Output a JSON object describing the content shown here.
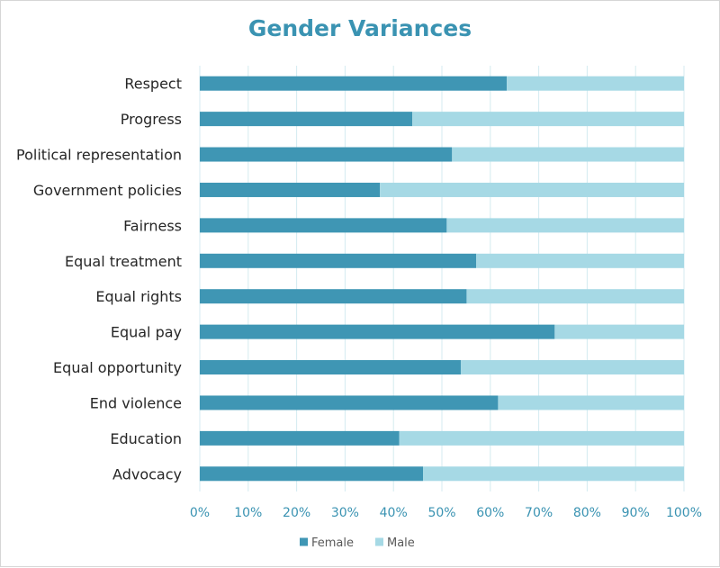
{
  "chart_data": {
    "type": "bar",
    "orientation": "horizontal",
    "stacked": "percent",
    "title": "Gender Variances",
    "categories": [
      "Respect",
      "Progress",
      "Political representation",
      "Government policies",
      "Fairness",
      "Equal treatment",
      "Equal rights",
      "Equal pay",
      "Equal opportunity",
      "End violence",
      "Education",
      "Advocacy"
    ],
    "series": [
      {
        "name": "Female",
        "color": "#3f96b4",
        "values": [
          63.4,
          43.9,
          52.1,
          37.2,
          51.0,
          57.1,
          55.1,
          73.3,
          53.9,
          61.6,
          41.2,
          46.1
        ]
      },
      {
        "name": "Male",
        "color": "#a6d9e5",
        "values": [
          36.6,
          56.1,
          47.9,
          62.8,
          49.0,
          42.9,
          44.9,
          26.7,
          46.1,
          38.4,
          58.8,
          53.9
        ]
      }
    ],
    "xlim": [
      0,
      100
    ],
    "xticks": [
      "0%",
      "10%",
      "20%",
      "30%",
      "40%",
      "50%",
      "60%",
      "70%",
      "80%",
      "90%",
      "100%"
    ],
    "grid": true,
    "legend": "bottom-center"
  }
}
